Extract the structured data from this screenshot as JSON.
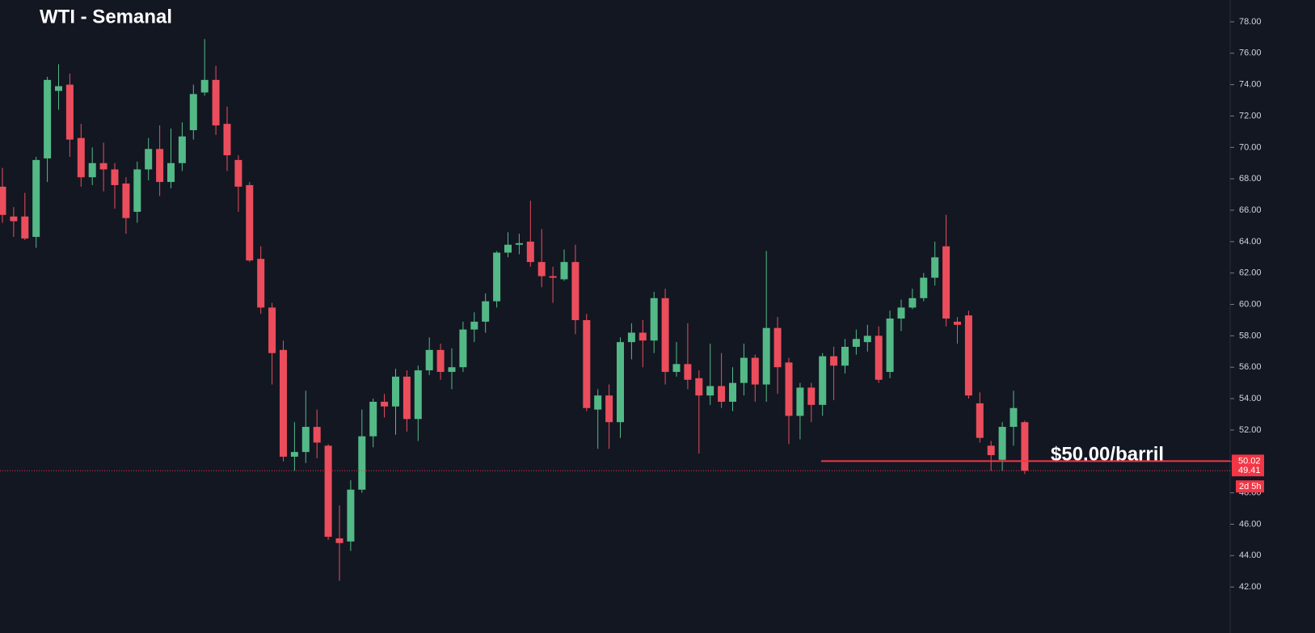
{
  "chart_data": {
    "type": "candlestick",
    "title": "WTI - Semanal",
    "open": [
      67.5,
      65.6,
      65.6,
      64.3,
      69.3,
      73.6,
      74.0,
      70.6,
      68.1,
      69.0,
      68.6,
      67.7,
      65.9,
      68.6,
      69.9,
      67.8,
      69.0,
      71.1,
      73.5,
      74.3,
      71.5,
      69.2,
      67.6,
      62.9,
      59.8,
      57.1,
      50.3,
      50.6,
      52.2,
      51.0,
      45.1,
      44.9,
      48.2,
      51.6,
      53.8,
      53.5,
      55.4,
      52.7,
      55.8,
      57.1,
      55.7,
      56.0,
      58.4,
      58.9,
      60.2,
      63.3,
      63.8,
      64.0,
      62.7,
      61.8,
      61.6,
      62.7,
      59.0,
      53.3,
      54.2,
      52.5,
      57.6,
      58.2,
      57.7,
      60.4,
      55.7,
      56.2,
      55.3,
      54.2,
      54.8,
      53.8,
      55.0,
      56.6,
      54.9,
      58.5,
      56.3,
      52.9,
      54.7,
      53.6,
      56.7,
      56.1,
      57.3,
      57.6,
      58.0,
      55.7,
      59.1,
      59.8,
      60.4,
      61.7,
      63.7,
      58.9,
      59.3,
      53.7,
      51.0,
      50.1,
      52.2,
      52.5
    ],
    "high": [
      68.7,
      66.2,
      67.1,
      69.4,
      74.5,
      75.3,
      74.7,
      71.5,
      70.0,
      70.3,
      69.0,
      68.1,
      69.1,
      70.6,
      71.4,
      71.2,
      71.6,
      74.0,
      76.9,
      75.2,
      72.6,
      69.5,
      67.8,
      63.7,
      60.1,
      57.7,
      52.5,
      54.5,
      53.3,
      51.1,
      47.2,
      48.8,
      53.3,
      54.0,
      54.3,
      55.9,
      55.8,
      56.1,
      57.9,
      57.5,
      57.2,
      58.9,
      59.5,
      60.7,
      63.4,
      64.6,
      64.5,
      66.6,
      64.8,
      62.4,
      63.5,
      63.8,
      59.4,
      54.6,
      54.9,
      57.9,
      58.8,
      59.0,
      60.8,
      61.0,
      57.6,
      58.8,
      55.8,
      57.5,
      56.9,
      56.0,
      57.5,
      56.8,
      63.4,
      59.2,
      56.6,
      55.0,
      55.0,
      56.9,
      57.3,
      57.8,
      58.4,
      58.7,
      58.6,
      59.6,
      60.3,
      61.0,
      62.0,
      64.0,
      65.7,
      59.2,
      59.6,
      54.4,
      51.3,
      52.5,
      54.5,
      52.6
    ],
    "low": [
      65.2,
      64.3,
      64.1,
      63.6,
      67.8,
      72.4,
      69.4,
      67.5,
      67.6,
      67.2,
      66.1,
      64.5,
      65.2,
      67.9,
      66.9,
      67.4,
      68.5,
      70.5,
      73.3,
      70.8,
      68.5,
      65.9,
      62.7,
      59.4,
      54.9,
      50.0,
      49.4,
      49.9,
      50.2,
      45.0,
      42.4,
      44.3,
      48.0,
      50.9,
      52.8,
      51.7,
      51.9,
      51.3,
      55.5,
      55.2,
      54.6,
      55.7,
      57.6,
      58.2,
      59.8,
      63.0,
      63.2,
      62.4,
      61.1,
      60.1,
      61.5,
      58.1,
      53.2,
      50.8,
      50.8,
      51.5,
      56.5,
      56.0,
      56.9,
      54.9,
      55.4,
      54.6,
      50.5,
      53.6,
      53.4,
      53.2,
      54.2,
      53.8,
      53.8,
      54.3,
      51.1,
      51.4,
      52.5,
      52.9,
      53.9,
      55.6,
      56.8,
      57.0,
      55.0,
      55.3,
      58.3,
      59.7,
      60.2,
      61.2,
      58.6,
      57.5,
      54.0,
      51.2,
      49.4,
      49.4,
      51.0,
      49.2
    ],
    "close": [
      65.7,
      65.3,
      64.2,
      69.2,
      74.3,
      73.9,
      70.5,
      68.1,
      69.0,
      68.6,
      67.6,
      65.5,
      68.6,
      69.9,
      67.8,
      69.0,
      70.7,
      73.4,
      74.3,
      71.4,
      69.5,
      67.5,
      62.8,
      59.8,
      56.9,
      50.3,
      50.6,
      52.2,
      51.2,
      45.2,
      44.8,
      48.2,
      51.6,
      53.8,
      53.5,
      55.4,
      52.7,
      55.8,
      57.1,
      55.7,
      56.0,
      58.4,
      58.9,
      60.2,
      63.3,
      63.8,
      63.9,
      62.7,
      61.8,
      61.7,
      62.7,
      59.0,
      53.4,
      54.2,
      52.5,
      57.6,
      58.2,
      57.7,
      60.4,
      55.7,
      56.2,
      55.2,
      54.2,
      54.8,
      53.8,
      55.0,
      56.6,
      54.9,
      58.5,
      56.0,
      52.9,
      54.7,
      53.6,
      56.7,
      56.1,
      57.3,
      57.8,
      58.0,
      55.2,
      59.1,
      59.8,
      60.4,
      61.7,
      63.0,
      59.1,
      58.7,
      54.2,
      51.5,
      50.4,
      52.2,
      53.4,
      49.41
    ],
    "up_color": "#53b987",
    "down_color": "#eb4d5c",
    "ylim": [
      39.07,
      79.39
    ],
    "yticks": [
      {
        "value": 42,
        "label": "42.00"
      },
      {
        "value": 44,
        "label": "44.00"
      },
      {
        "value": 46,
        "label": "46.00"
      },
      {
        "value": 48,
        "label": "48.00"
      },
      {
        "value": 50,
        "label": "50.00"
      },
      {
        "value": 52,
        "label": "52.00"
      },
      {
        "value": 54,
        "label": "54.00"
      },
      {
        "value": 56,
        "label": "56.00"
      },
      {
        "value": 58,
        "label": "58.00"
      },
      {
        "value": 60,
        "label": "60.00"
      },
      {
        "value": 62,
        "label": "62.00"
      },
      {
        "value": 64,
        "label": "64.00"
      },
      {
        "value": 66,
        "label": "66.00"
      },
      {
        "value": 68,
        "label": "68.00"
      },
      {
        "value": 70,
        "label": "70.00"
      },
      {
        "value": 72,
        "label": "72.00"
      },
      {
        "value": 74,
        "label": "74.00"
      },
      {
        "value": 76,
        "label": "76.00"
      },
      {
        "value": 78,
        "label": "78.00"
      }
    ],
    "level_line": {
      "value": 50.02,
      "label": "50.02",
      "color": "#f23645"
    },
    "last_price": {
      "value": 49.41,
      "label": "49.41",
      "color": "#f23645"
    },
    "countdown": "2d 5h",
    "annotation": "$50.00/barril"
  }
}
